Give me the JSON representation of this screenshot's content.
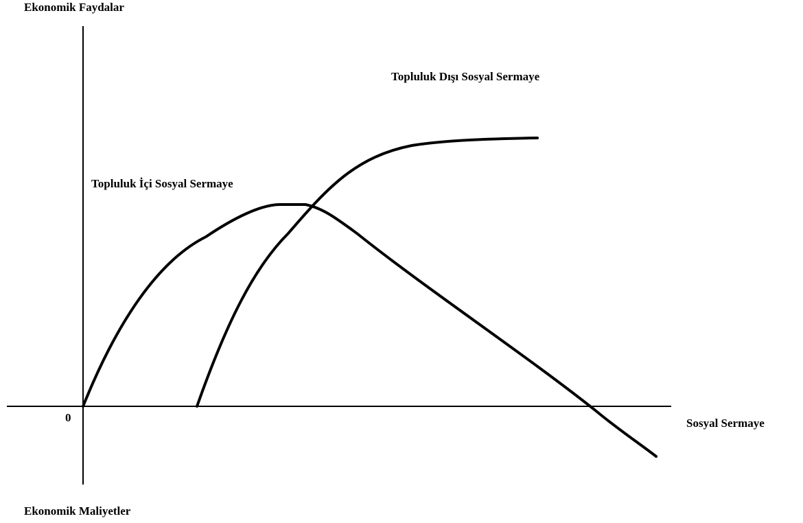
{
  "axes": {
    "y_top_label": "Ekonomik Faydalar",
    "y_bottom_label": "Ekonomik Maliyetler",
    "x_label": "Sosyal Sermaye",
    "origin_label": "0"
  },
  "curves": [
    {
      "id": "inside",
      "label": "Topluluk İçi Sosyal Sermaye"
    },
    {
      "id": "outside",
      "label": "Topluluk Dışı Sosyal Sermaye"
    }
  ]
}
